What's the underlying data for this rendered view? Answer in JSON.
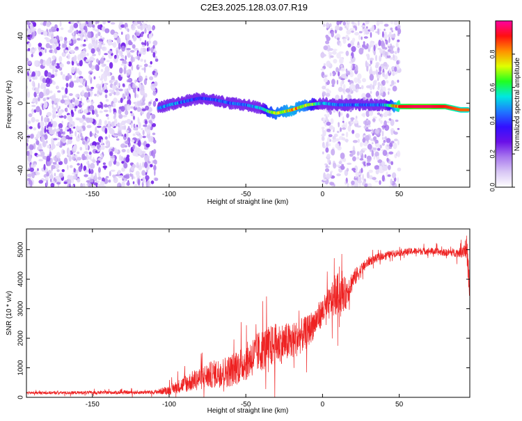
{
  "title": "C2E3.2025.128.03.07.R19",
  "colors": {
    "snr_line": "#ee2222",
    "colormap": [
      "#ffffff",
      "#d9c8f5",
      "#a878ee",
      "#6a10e8",
      "#3210ff",
      "#1e78ff",
      "#00e8e0",
      "#20ff20",
      "#e0ff00",
      "#ff9000",
      "#ff1010",
      "#ff00a0"
    ]
  },
  "chart_data": [
    {
      "name": "spectrogram",
      "type": "heatmap",
      "xlabel": "Height of straight line (km)",
      "ylabel": "Frequency (Hz)",
      "xlim": [
        -193,
        96
      ],
      "ylim": [
        -50,
        49
      ],
      "xticks": [
        -150,
        -100,
        -50,
        0,
        50
      ],
      "yticks": [
        -40,
        -20,
        0,
        20,
        40
      ],
      "colorbar": {
        "label": "Normalized spectral amplitude",
        "range": [
          0,
          1
        ],
        "ticks": [
          0.0,
          0.2,
          0.4,
          0.6,
          0.8
        ]
      },
      "regions": [
        {
          "x_range": [
            -193,
            -108
          ],
          "content": "broadband noise",
          "amplitude": 0.2
        },
        {
          "x_range": [
            -108,
            50
          ],
          "content": "narrow carrier trace near 0 Hz",
          "amplitude": 0.5
        },
        {
          "x_range": [
            0,
            50
          ],
          "content": "broadband noise",
          "amplitude": 0.15
        },
        {
          "x_range": [
            50,
            96
          ],
          "content": "strong carrier",
          "amplitude": 0.95
        }
      ],
      "carrier_trace": {
        "x": [
          -107,
          -100,
          -90,
          -80,
          -70,
          -60,
          -50,
          -40,
          -35,
          -30,
          -20,
          -10,
          0,
          10,
          20,
          30,
          40,
          50,
          60,
          70,
          80,
          90,
          95
        ],
        "freq_hz": [
          -3,
          -1,
          1,
          3,
          2,
          0,
          -1,
          -3,
          -5,
          -6,
          -4,
          -1,
          0,
          -1,
          -1,
          -1,
          -1,
          -2,
          -2,
          -2,
          -2,
          -4,
          -4
        ],
        "amplitude": [
          0.45,
          0.5,
          0.45,
          0.4,
          0.45,
          0.45,
          0.45,
          0.55,
          0.7,
          0.75,
          0.8,
          0.75,
          0.5,
          0.45,
          0.45,
          0.45,
          0.5,
          0.9,
          0.95,
          0.95,
          0.9,
          0.85,
          0.85
        ]
      }
    },
    {
      "name": "snr",
      "type": "line",
      "xlabel": "Height of straight line (km)",
      "ylabel": "SNR (10 * v/v)",
      "xlim": [
        -193,
        96
      ],
      "ylim": [
        0,
        5700
      ],
      "xticks": [
        -150,
        -100,
        -50,
        0,
        50
      ],
      "yticks": [
        0,
        1000,
        2000,
        3000,
        4000,
        5000
      ],
      "series": [
        {
          "x": [
            -193,
            -150,
            -110,
            -100,
            -90,
            -80,
            -70,
            -60,
            -50,
            -40,
            -30,
            -20,
            -10,
            0,
            5,
            10,
            15,
            20,
            30,
            40,
            50,
            60,
            70,
            80,
            90,
            94,
            96
          ],
          "y": [
            150,
            160,
            170,
            250,
            450,
            650,
            800,
            900,
            1200,
            1600,
            1800,
            1900,
            2200,
            2900,
            3200,
            3500,
            3500,
            4000,
            4600,
            4800,
            4900,
            4950,
            4950,
            4900,
            4900,
            5100,
            3500
          ],
          "spread": [
            60,
            70,
            80,
            200,
            350,
            500,
            600,
            700,
            800,
            900,
            900,
            800,
            700,
            600,
            700,
            900,
            700,
            400,
            200,
            150,
            150,
            150,
            150,
            150,
            200,
            500,
            800
          ]
        }
      ]
    }
  ]
}
